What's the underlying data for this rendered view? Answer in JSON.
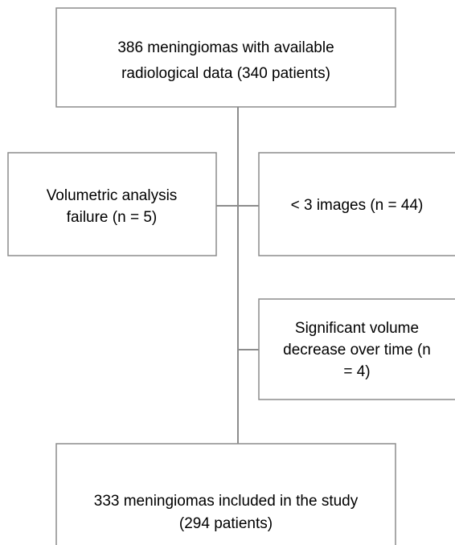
{
  "nodes": [
    {
      "lines": [
        "386 meningiomas with available",
        "radiological data (340 patients)"
      ]
    },
    {
      "lines": [
        "Volumetric analysis",
        "failure (n = 5)"
      ]
    },
    {
      "lines": [
        "< 3 images (n = 44)"
      ]
    },
    {
      "lines": [
        "Significant volume",
        "decrease over time (n",
        "= 4)"
      ]
    },
    {
      "lines": [
        "333 meningiomas included in the study",
        "(294 patients)"
      ]
    }
  ]
}
